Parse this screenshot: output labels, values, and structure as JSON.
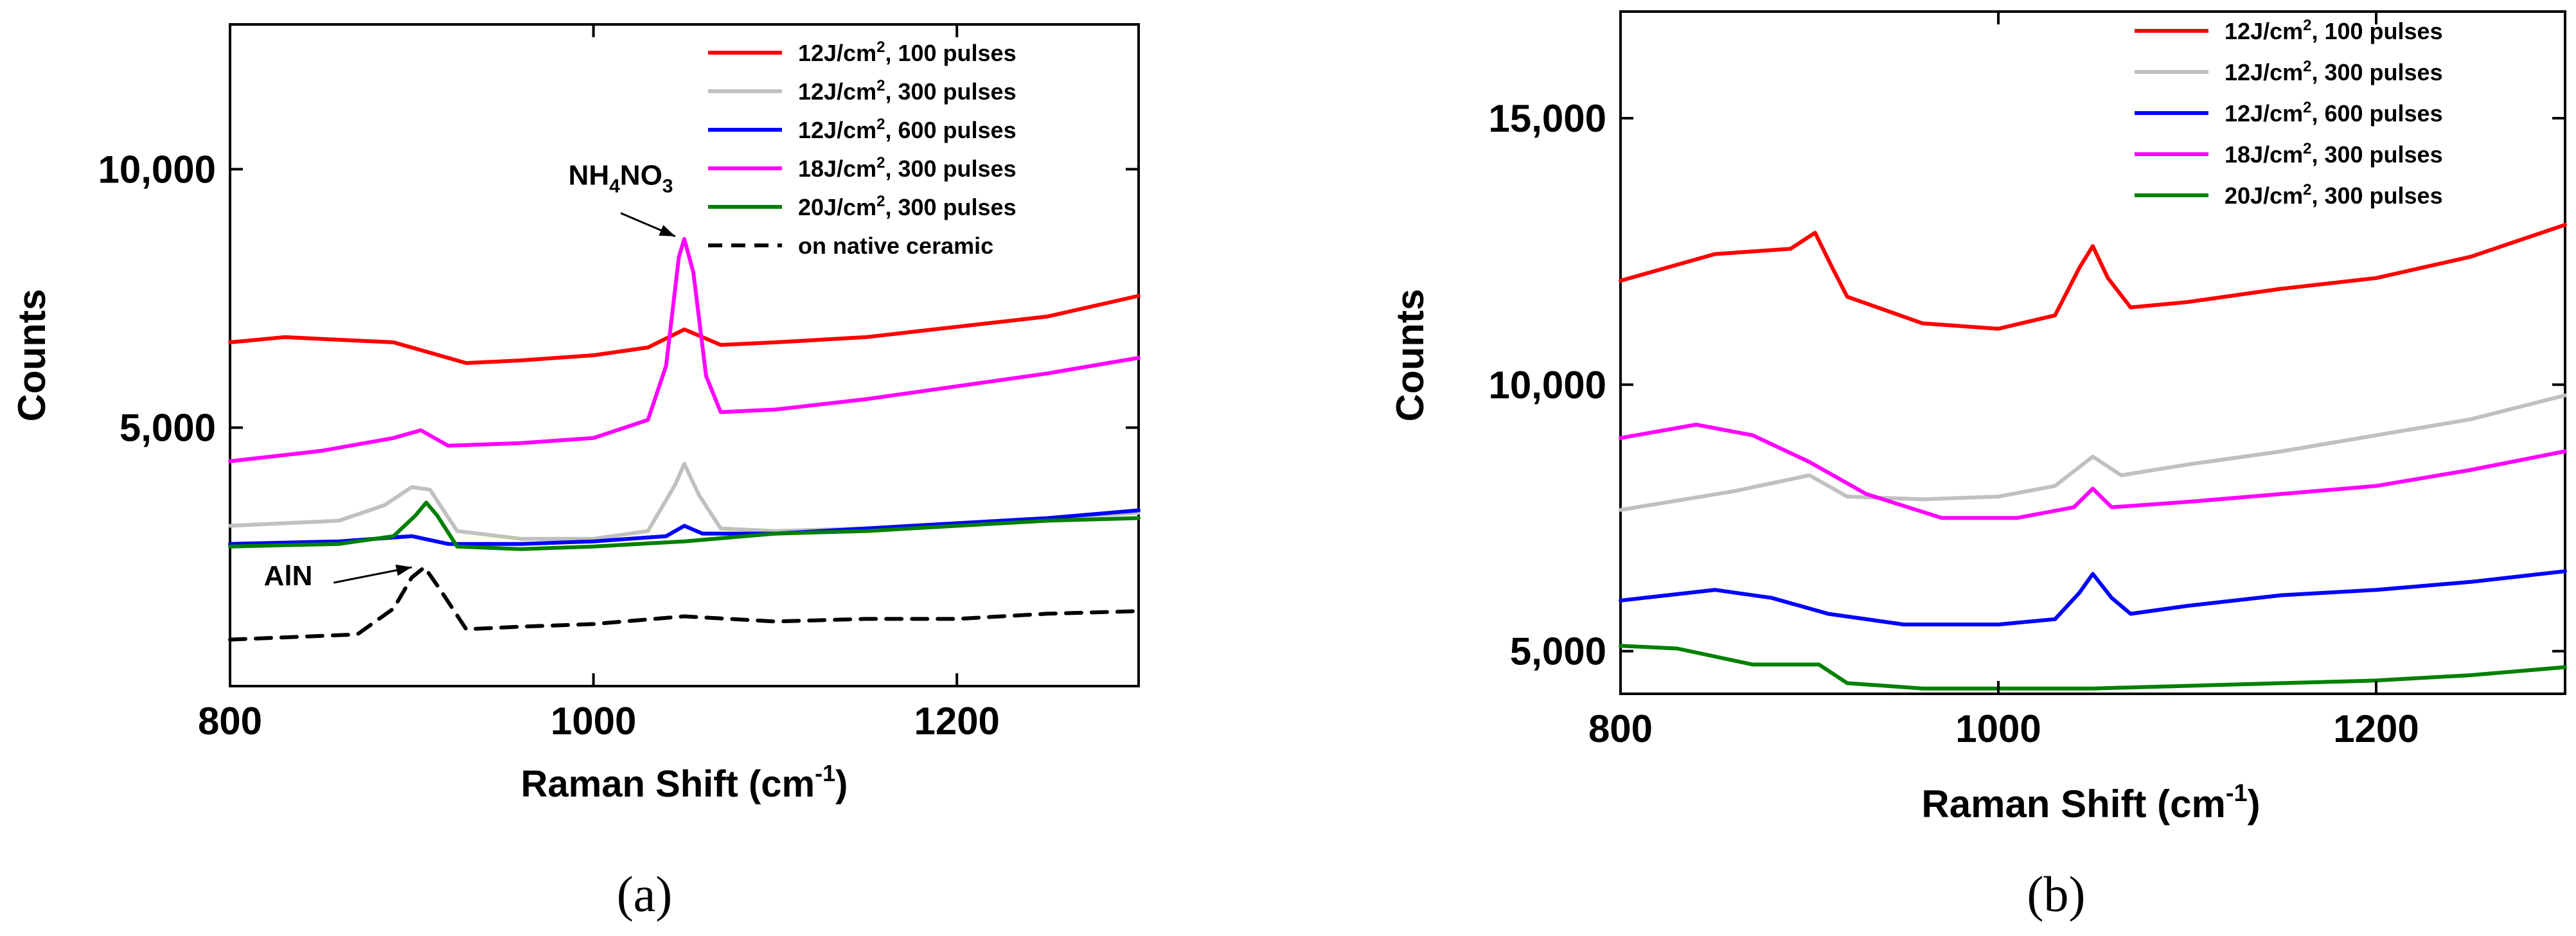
{
  "chart_data": [
    {
      "panel": "a",
      "panel_label": "(a)",
      "type": "line",
      "title": "",
      "xlabel": "Raman Shift (cm",
      "xlabel_sup": "-1",
      "xlabel_end": ")",
      "ylabel": "Counts",
      "xlim": [
        800,
        1300
      ],
      "ylim": [
        0,
        12800
      ],
      "xticks": [
        800,
        1000,
        1200
      ],
      "xtick_labels": [
        "800",
        "1000",
        "1200"
      ],
      "yticks": [
        5000,
        10000
      ],
      "ytick_labels": [
        "5,000",
        "10,000"
      ],
      "legend_position": "top-right",
      "series": [
        {
          "name": "12J/cm², 100 pulses",
          "legend_pre": "12J/cm",
          "legend_sup": "2",
          "legend_post": ", 100 pulses",
          "color": "#ff0000",
          "dash": "solid",
          "points": [
            [
              800,
              6650
            ],
            [
              830,
              6750
            ],
            [
              860,
              6700
            ],
            [
              890,
              6650
            ],
            [
              910,
              6450
            ],
            [
              930,
              6250
            ],
            [
              960,
              6300
            ],
            [
              1000,
              6400
            ],
            [
              1030,
              6550
            ],
            [
              1050,
              6900
            ],
            [
              1070,
              6600
            ],
            [
              1100,
              6650
            ],
            [
              1150,
              6750
            ],
            [
              1200,
              6950
            ],
            [
              1250,
              7150
            ],
            [
              1300,
              7550
            ]
          ]
        },
        {
          "name": "12J/cm², 300 pulses",
          "legend_pre": "12J/cm",
          "legend_sup": "2",
          "legend_post": ", 300 pulses",
          "color": "#c0c0c0",
          "dash": "solid",
          "points": [
            [
              800,
              3100
            ],
            [
              860,
              3200
            ],
            [
              885,
              3500
            ],
            [
              900,
              3850
            ],
            [
              910,
              3800
            ],
            [
              925,
              3000
            ],
            [
              960,
              2850
            ],
            [
              1000,
              2850
            ],
            [
              1030,
              3000
            ],
            [
              1045,
              3900
            ],
            [
              1050,
              4300
            ],
            [
              1058,
              3700
            ],
            [
              1070,
              3050
            ],
            [
              1100,
              3000
            ],
            [
              1150,
              3050
            ],
            [
              1200,
              3150
            ],
            [
              1250,
              3250
            ],
            [
              1300,
              3350
            ]
          ]
        },
        {
          "name": "12J/cm², 600 pulses",
          "legend_pre": "12J/cm",
          "legend_sup": "2",
          "legend_post": ", 600 pulses",
          "color": "#0000ff",
          "dash": "solid",
          "points": [
            [
              800,
              2750
            ],
            [
              860,
              2800
            ],
            [
              900,
              2900
            ],
            [
              920,
              2750
            ],
            [
              960,
              2750
            ],
            [
              1000,
              2800
            ],
            [
              1040,
              2900
            ],
            [
              1050,
              3100
            ],
            [
              1060,
              2950
            ],
            [
              1100,
              2950
            ],
            [
              1150,
              3050
            ],
            [
              1200,
              3150
            ],
            [
              1250,
              3250
            ],
            [
              1300,
              3400
            ]
          ]
        },
        {
          "name": "18J/cm², 300 pulses",
          "legend_pre": "18J/cm",
          "legend_sup": "2",
          "legend_post": ", 300 pulses",
          "color": "#ff00ff",
          "dash": "solid",
          "points": [
            [
              800,
              4350
            ],
            [
              850,
              4550
            ],
            [
              890,
              4800
            ],
            [
              905,
              4950
            ],
            [
              920,
              4650
            ],
            [
              960,
              4700
            ],
            [
              1000,
              4800
            ],
            [
              1030,
              5150
            ],
            [
              1040,
              6200
            ],
            [
              1047,
              8300
            ],
            [
              1050,
              8650
            ],
            [
              1055,
              8000
            ],
            [
              1062,
              6000
            ],
            [
              1070,
              5300
            ],
            [
              1100,
              5350
            ],
            [
              1150,
              5550
            ],
            [
              1200,
              5800
            ],
            [
              1250,
              6050
            ],
            [
              1300,
              6350
            ]
          ]
        },
        {
          "name": "20J/cm², 300 pulses",
          "legend_pre": "20J/cm",
          "legend_sup": "2",
          "legend_post": ", 300 pulses",
          "color": "#008000",
          "dash": "solid",
          "points": [
            [
              800,
              2700
            ],
            [
              860,
              2750
            ],
            [
              890,
              2900
            ],
            [
              902,
              3300
            ],
            [
              908,
              3550
            ],
            [
              914,
              3300
            ],
            [
              925,
              2700
            ],
            [
              960,
              2650
            ],
            [
              1000,
              2700
            ],
            [
              1050,
              2800
            ],
            [
              1100,
              2950
            ],
            [
              1150,
              3000
            ],
            [
              1200,
              3100
            ],
            [
              1250,
              3200
            ],
            [
              1300,
              3250
            ]
          ]
        },
        {
          "name": "on native ceramic",
          "legend_pre": "on native ceramic",
          "legend_sup": "",
          "legend_post": "",
          "color": "#000000",
          "dash": "dashed",
          "points": [
            [
              800,
              900
            ],
            [
              870,
              1000
            ],
            [
              890,
              1500
            ],
            [
              900,
              2100
            ],
            [
              907,
              2300
            ],
            [
              915,
              1900
            ],
            [
              930,
              1100
            ],
            [
              960,
              1150
            ],
            [
              1000,
              1200
            ],
            [
              1050,
              1350
            ],
            [
              1100,
              1250
            ],
            [
              1150,
              1300
            ],
            [
              1200,
              1300
            ],
            [
              1250,
              1400
            ],
            [
              1300,
              1450
            ]
          ]
        }
      ],
      "annotations": [
        {
          "id": "nh4no3",
          "label_parts": [
            "NH",
            "4",
            "NO",
            "3"
          ],
          "text_x": 1015,
          "text_y": 9700,
          "arrow_from": [
            1015,
            9150
          ],
          "arrow_to": [
            1045,
            8700
          ]
        },
        {
          "id": "aln",
          "label": "AlN",
          "text_x": 832,
          "text_y": 1950,
          "arrow_from": [
            857,
            2000
          ],
          "arrow_to": [
            900,
            2300
          ]
        }
      ]
    },
    {
      "panel": "b",
      "panel_label": "(b)",
      "type": "line",
      "title": "",
      "xlabel": "Raman Shift (cm",
      "xlabel_sup": "-1",
      "xlabel_end": ")",
      "ylabel": "Counts",
      "xlim": [
        800,
        1300
      ],
      "ylim": [
        4200,
        17000
      ],
      "xticks": [
        800,
        1000,
        1200
      ],
      "xtick_labels": [
        "800",
        "1000",
        "1200"
      ],
      "yticks": [
        5000,
        10000,
        15000
      ],
      "ytick_labels": [
        "5,000",
        "10,000",
        "15,000"
      ],
      "legend_position": "top-right",
      "series": [
        {
          "name": "12J/cm², 100 pulses",
          "legend_pre": "12J/cm",
          "legend_sup": "2",
          "legend_post": ", 100 pulses",
          "color": "#ff0000",
          "dash": "solid",
          "points": [
            [
              800,
              11950
            ],
            [
              850,
              12450
            ],
            [
              890,
              12550
            ],
            [
              903,
              12850
            ],
            [
              912,
              12200
            ],
            [
              920,
              11650
            ],
            [
              960,
              11150
            ],
            [
              1000,
              11050
            ],
            [
              1030,
              11300
            ],
            [
              1043,
              12200
            ],
            [
              1050,
              12600
            ],
            [
              1058,
              12000
            ],
            [
              1070,
              11450
            ],
            [
              1100,
              11550
            ],
            [
              1150,
              11800
            ],
            [
              1200,
              12000
            ],
            [
              1250,
              12400
            ],
            [
              1300,
              13000
            ]
          ]
        },
        {
          "name": "12J/cm², 300 pulses",
          "legend_pre": "12J/cm",
          "legend_sup": "2",
          "legend_post": ", 300 pulses",
          "color": "#c0c0c0",
          "dash": "solid",
          "points": [
            [
              800,
              7650
            ],
            [
              860,
              8000
            ],
            [
              900,
              8300
            ],
            [
              920,
              7900
            ],
            [
              960,
              7850
            ],
            [
              1000,
              7900
            ],
            [
              1030,
              8100
            ],
            [
              1050,
              8650
            ],
            [
              1065,
              8300
            ],
            [
              1100,
              8500
            ],
            [
              1150,
              8750
            ],
            [
              1200,
              9050
            ],
            [
              1250,
              9350
            ],
            [
              1300,
              9800
            ]
          ]
        },
        {
          "name": "12J/cm², 600 pulses",
          "legend_pre": "12J/cm",
          "legend_sup": "2",
          "legend_post": ", 600 pulses",
          "color": "#0000ff",
          "dash": "solid",
          "points": [
            [
              800,
              5950
            ],
            [
              850,
              6150
            ],
            [
              880,
              6000
            ],
            [
              910,
              5700
            ],
            [
              950,
              5500
            ],
            [
              1000,
              5500
            ],
            [
              1030,
              5600
            ],
            [
              1043,
              6100
            ],
            [
              1050,
              6450
            ],
            [
              1060,
              6000
            ],
            [
              1070,
              5700
            ],
            [
              1100,
              5850
            ],
            [
              1150,
              6050
            ],
            [
              1200,
              6150
            ],
            [
              1250,
              6300
            ],
            [
              1300,
              6500
            ]
          ]
        },
        {
          "name": "18J/cm², 300 pulses",
          "legend_pre": "18J/cm",
          "legend_sup": "2",
          "legend_post": ", 300 pulses",
          "color": "#ff00ff",
          "dash": "solid",
          "points": [
            [
              800,
              9000
            ],
            [
              840,
              9250
            ],
            [
              870,
              9050
            ],
            [
              900,
              8550
            ],
            [
              930,
              7950
            ],
            [
              970,
              7500
            ],
            [
              1010,
              7500
            ],
            [
              1040,
              7700
            ],
            [
              1050,
              8050
            ],
            [
              1060,
              7700
            ],
            [
              1100,
              7800
            ],
            [
              1150,
              7950
            ],
            [
              1200,
              8100
            ],
            [
              1250,
              8400
            ],
            [
              1300,
              8750
            ]
          ]
        },
        {
          "name": "20J/cm², 300 pulses",
          "legend_pre": "20J/cm",
          "legend_sup": "2",
          "legend_post": ", 300 pulses",
          "color": "#008000",
          "dash": "solid",
          "points": [
            [
              800,
              5100
            ],
            [
              830,
              5050
            ],
            [
              870,
              4750
            ],
            [
              905,
              4750
            ],
            [
              920,
              4400
            ],
            [
              960,
              4300
            ],
            [
              1000,
              4300
            ],
            [
              1050,
              4300
            ],
            [
              1100,
              4350
            ],
            [
              1150,
              4400
            ],
            [
              1200,
              4450
            ],
            [
              1250,
              4550
            ],
            [
              1300,
              4700
            ]
          ]
        }
      ],
      "annotations": []
    }
  ]
}
